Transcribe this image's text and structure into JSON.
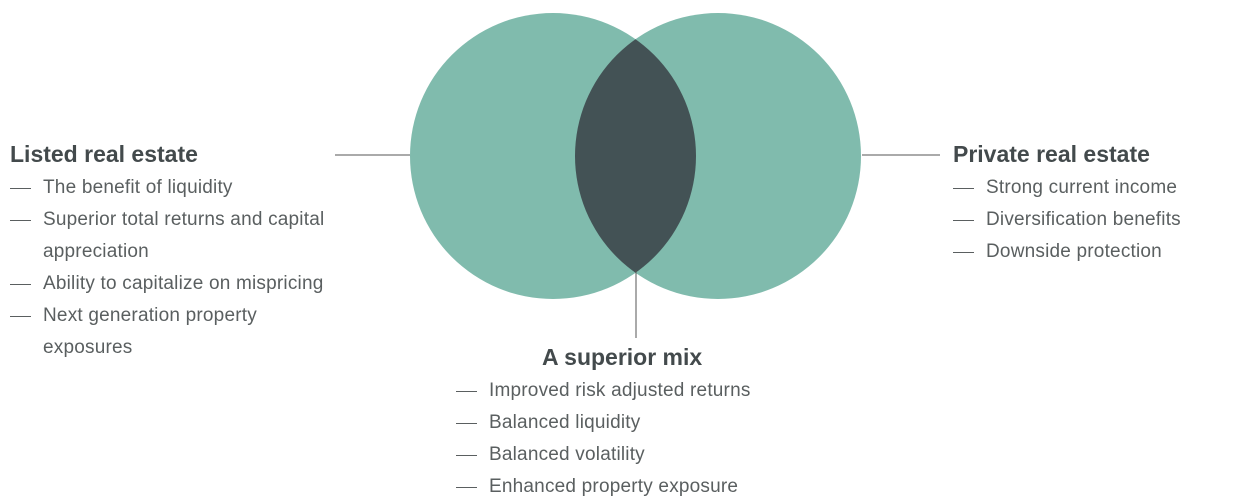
{
  "left": {
    "title": "Listed real estate",
    "items": [
      "The benefit of liquidity",
      "Superior total returns and capital appreciation",
      "Ability to capitalize on mispricing",
      "Next generation property exposures"
    ]
  },
  "right": {
    "title": "Private real estate",
    "items": [
      "Strong current income",
      "Diversification benefits",
      "Downside protection"
    ]
  },
  "center": {
    "title": "A superior mix",
    "items": [
      "Improved risk adjusted returns",
      "Balanced liquidity",
      "Balanced volatility",
      "Enhanced property exposure"
    ]
  }
}
